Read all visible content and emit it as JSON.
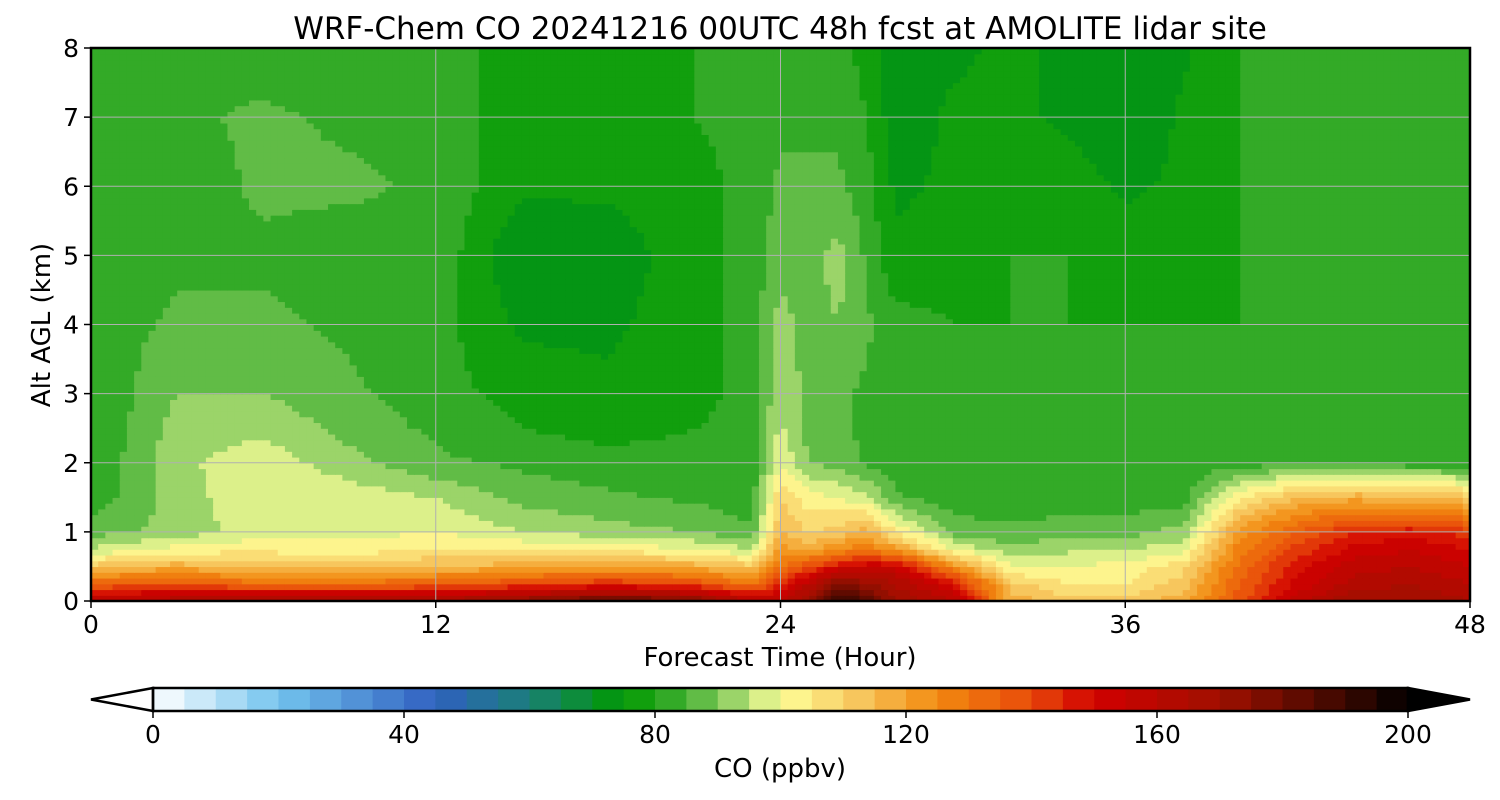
{
  "chart_data": {
    "type": "heatmap",
    "title": "WRF-Chem CO  20241216 00UTC 48h fcst at AMOLITE lidar site",
    "xlabel": "Forecast Time (Hour)",
    "ylabel": "Alt AGL (km)",
    "xlim": [
      0,
      48
    ],
    "ylim": [
      0,
      8
    ],
    "x_ticks": [
      "0",
      "12",
      "24",
      "36",
      "48"
    ],
    "y_ticks": [
      "0",
      "1",
      "2",
      "3",
      "4",
      "5",
      "6",
      "7",
      "8"
    ],
    "grid": true,
    "x_hours": [
      0,
      3,
      6,
      9,
      12,
      15,
      18,
      21,
      23,
      24,
      25,
      26,
      27,
      28,
      30,
      32,
      34,
      36,
      38,
      40,
      42,
      44,
      46,
      48
    ],
    "z_km": [
      0,
      0.25,
      0.5,
      0.75,
      1,
      1.5,
      2,
      2.5,
      3,
      4,
      5,
      6,
      7,
      8
    ],
    "values_ppbv": [
      [
        160,
        165,
        168,
        170,
        168,
        175,
        185,
        178,
        160,
        158,
        172,
        192,
        185,
        170,
        160,
        118,
        112,
        112,
        118,
        138,
        158,
        170,
        170,
        165
      ],
      [
        135,
        138,
        132,
        132,
        135,
        140,
        145,
        140,
        130,
        145,
        160,
        178,
        172,
        165,
        150,
        112,
        105,
        105,
        112,
        135,
        152,
        162,
        165,
        160
      ],
      [
        112,
        118,
        112,
        112,
        115,
        118,
        120,
        118,
        112,
        130,
        140,
        150,
        155,
        155,
        125,
        100,
        100,
        102,
        108,
        132,
        148,
        158,
        160,
        155
      ],
      [
        96,
        102,
        104,
        102,
        106,
        105,
        104,
        100,
        95,
        122,
        118,
        125,
        128,
        122,
        100,
        92,
        94,
        95,
        98,
        128,
        142,
        152,
        155,
        150
      ],
      [
        88,
        92,
        98,
        98,
        100,
        95,
        92,
        90,
        86,
        115,
        110,
        112,
        118,
        105,
        88,
        86,
        88,
        88,
        92,
        122,
        136,
        145,
        148,
        142
      ],
      [
        82,
        92,
        100,
        98,
        95,
        88,
        86,
        84,
        82,
        110,
        102,
        100,
        96,
        86,
        82,
        82,
        82,
        82,
        82,
        105,
        115,
        118,
        116,
        112
      ],
      [
        80,
        94,
        98,
        92,
        86,
        84,
        82,
        82,
        82,
        100,
        90,
        88,
        84,
        82,
        82,
        82,
        82,
        82,
        82,
        82,
        84,
        84,
        82,
        82
      ],
      [
        80,
        92,
        94,
        88,
        84,
        80,
        78,
        80,
        82,
        96,
        88,
        86,
        84,
        82,
        82,
        82,
        80,
        80,
        80,
        80,
        80,
        80,
        80,
        80
      ],
      [
        80,
        90,
        90,
        86,
        82,
        78,
        76,
        78,
        82,
        94,
        88,
        86,
        84,
        82,
        80,
        80,
        80,
        80,
        80,
        80,
        80,
        80,
        80,
        80
      ],
      [
        82,
        86,
        86,
        84,
        82,
        74,
        74,
        78,
        82,
        92,
        88,
        90,
        86,
        82,
        80,
        80,
        80,
        80,
        80,
        80,
        80,
        80,
        80,
        80
      ],
      [
        82,
        84,
        84,
        82,
        84,
        70,
        72,
        78,
        82,
        88,
        88,
        92,
        84,
        76,
        78,
        80,
        80,
        78,
        78,
        80,
        80,
        80,
        80,
        80
      ],
      [
        84,
        82,
        86,
        86,
        84,
        76,
        76,
        78,
        82,
        86,
        86,
        86,
        82,
        74,
        76,
        78,
        78,
        74,
        76,
        80,
        82,
        82,
        82,
        82
      ],
      [
        84,
        84,
        86,
        84,
        82,
        78,
        78,
        80,
        82,
        84,
        84,
        84,
        80,
        72,
        76,
        76,
        74,
        70,
        76,
        80,
        84,
        84,
        84,
        84
      ],
      [
        82,
        84,
        82,
        82,
        82,
        78,
        78,
        80,
        82,
        82,
        84,
        82,
        78,
        70,
        74,
        76,
        74,
        70,
        74,
        80,
        82,
        84,
        84,
        84
      ]
    ],
    "colorbar": {
      "label": "CO  (ppbv)",
      "min": 0,
      "max": 200,
      "ticks": [
        "0",
        "40",
        "80",
        "120",
        "160",
        "200"
      ],
      "extend": "both",
      "stops": [
        {
          "value": 0,
          "color": "#ffffff"
        },
        {
          "value": 20,
          "color": "#73c4ee"
        },
        {
          "value": 45,
          "color": "#3060c0"
        },
        {
          "value": 60,
          "color": "#1a7f78"
        },
        {
          "value": 75,
          "color": "#009900"
        },
        {
          "value": 85,
          "color": "#44b034"
        },
        {
          "value": 95,
          "color": "#b8e07a"
        },
        {
          "value": 100,
          "color": "#ffff99"
        },
        {
          "value": 112,
          "color": "#f7c860"
        },
        {
          "value": 125,
          "color": "#f28a10"
        },
        {
          "value": 140,
          "color": "#e84a0a"
        },
        {
          "value": 150,
          "color": "#d10000"
        },
        {
          "value": 170,
          "color": "#a01000"
        },
        {
          "value": 190,
          "color": "#3a0800"
        },
        {
          "value": 200,
          "color": "#000000"
        }
      ],
      "under_color": "#ffffff",
      "over_color": "#000000"
    }
  }
}
